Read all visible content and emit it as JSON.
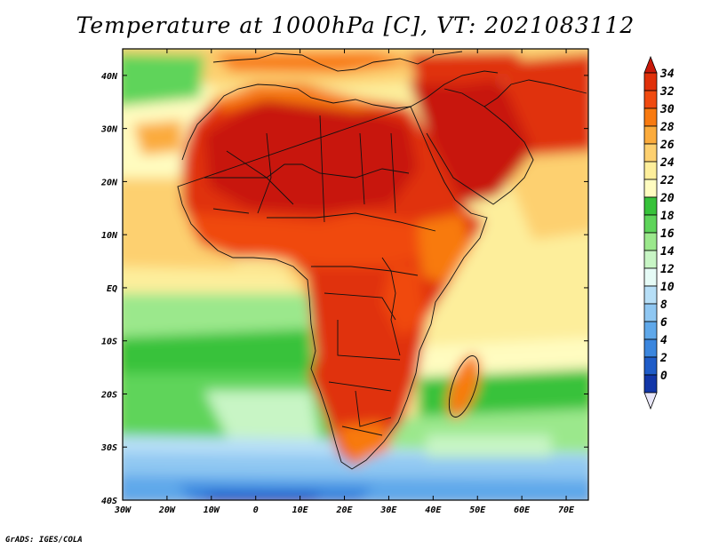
{
  "title": "Temperature at 1000hPa [C], VT: 2021083112",
  "credit": "GrADS: IGES/COLA",
  "map": {
    "lon_range": [
      -30,
      75
    ],
    "lat_range": [
      -40,
      45
    ],
    "lon_ticks": [
      "30W",
      "20W",
      "10W",
      "0",
      "10E",
      "20E",
      "30E",
      "40E",
      "50E",
      "60E",
      "70E"
    ],
    "lat_ticks": [
      "40S",
      "30S",
      "20S",
      "10S",
      "EQ",
      "10N",
      "20N",
      "30N",
      "40N"
    ],
    "lat_tick_values": [
      -40,
      -30,
      -20,
      -10,
      0,
      10,
      20,
      30,
      40
    ],
    "lon_tick_values": [
      -30,
      -20,
      -10,
      0,
      10,
      20,
      30,
      40,
      50,
      60,
      70
    ]
  },
  "colorbar": {
    "labels": [
      "34",
      "32",
      "30",
      "28",
      "26",
      "24",
      "22",
      "20",
      "18",
      "16",
      "14",
      "12",
      "10",
      "8",
      "6",
      "4",
      "2",
      "0"
    ],
    "colors": [
      "#e0300a",
      "#f04a10",
      "#f87a10",
      "#fbab3c",
      "#fdd070",
      "#fdee9b",
      "#fffcc0",
      "#37c23a",
      "#5ed45a",
      "#9be88c",
      "#c8f5c5",
      "#e6fbf6",
      "#b7dff7",
      "#8fc7f2",
      "#5fa8ea",
      "#3b86de",
      "#1f5cc8",
      "#1236a8",
      "#0c1d82"
    ],
    "top_color": "#c8190a",
    "bottom_color": "#e8e6f8"
  }
}
